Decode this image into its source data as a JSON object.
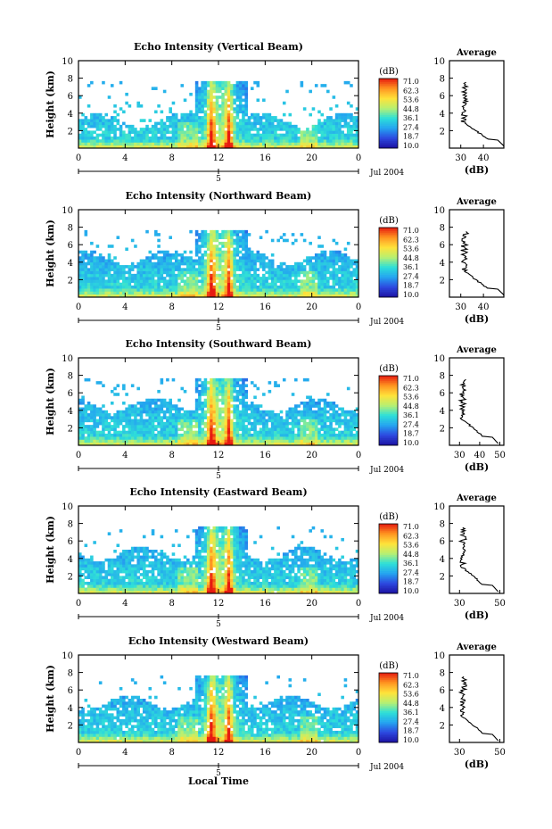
{
  "chart_data": [
    {
      "type": "heatmap",
      "title": "Echo Intensity (Vertical Beam)",
      "ylabel": "Height (km)",
      "xticks": [
        "0",
        "4",
        "8",
        "12",
        "16",
        "20",
        "0"
      ],
      "yticks": [
        "2",
        "4",
        "6",
        "8",
        "10"
      ],
      "xlim": [
        0,
        24
      ],
      "ylim": [
        0,
        10
      ],
      "colorbar": {
        "unit": "(dB)",
        "ticks": [
          "71.0",
          "62.3",
          "53.6",
          "44.8",
          "36.1",
          "27.4",
          "18.7",
          "10.0"
        ]
      },
      "date_label": "Jul 2004",
      "date_tick": "5",
      "profile": {
        "title": "Average",
        "xlabel": "(dB)",
        "xticks": [
          "30",
          "40"
        ],
        "yticks": [
          "2",
          "4",
          "6",
          "8",
          "10"
        ],
        "xlim": [
          25,
          49
        ],
        "ylim": [
          0,
          10
        ]
      }
    },
    {
      "type": "heatmap",
      "title": "Echo Intensity (Northward Beam)",
      "ylabel": "Height (km)",
      "xticks": [
        "0",
        "4",
        "8",
        "12",
        "16",
        "20",
        "0"
      ],
      "yticks": [
        "2",
        "4",
        "6",
        "8",
        "10"
      ],
      "xlim": [
        0,
        24
      ],
      "ylim": [
        0,
        10
      ],
      "colorbar": {
        "unit": "(dB)",
        "ticks": [
          "71.0",
          "62.3",
          "53.6",
          "44.8",
          "36.1",
          "27.4",
          "18.7",
          "10.0"
        ]
      },
      "date_label": "Jul 2004",
      "date_tick": "5",
      "profile": {
        "title": "Average",
        "xlabel": "(dB)",
        "xticks": [
          "30",
          "40"
        ],
        "yticks": [
          "2",
          "4",
          "6",
          "8",
          "10"
        ],
        "xlim": [
          25,
          49
        ],
        "ylim": [
          0,
          10
        ]
      }
    },
    {
      "type": "heatmap",
      "title": "Echo Intensity (Southward Beam)",
      "ylabel": "Height (km)",
      "xticks": [
        "0",
        "4",
        "8",
        "12",
        "16",
        "20",
        "0"
      ],
      "yticks": [
        "2",
        "4",
        "6",
        "8",
        "10"
      ],
      "xlim": [
        0,
        24
      ],
      "ylim": [
        0,
        10
      ],
      "colorbar": {
        "unit": "(dB)",
        "ticks": [
          "71.0",
          "62.3",
          "53.6",
          "44.8",
          "36.1",
          "27.4",
          "18.7",
          "10.0"
        ]
      },
      "date_label": "Jul 2004",
      "date_tick": "5",
      "profile": {
        "title": "Average",
        "xlabel": "(dB)",
        "xticks": [
          "30",
          "40",
          "50"
        ],
        "yticks": [
          "2",
          "4",
          "6",
          "8",
          "10"
        ],
        "xlim": [
          25,
          52
        ],
        "ylim": [
          0,
          10
        ]
      }
    },
    {
      "type": "heatmap",
      "title": "Echo Intensity (Eastward Beam)",
      "ylabel": "Height (km)",
      "xticks": [
        "0",
        "4",
        "8",
        "12",
        "16",
        "20",
        "0"
      ],
      "yticks": [
        "2",
        "4",
        "6",
        "8",
        "10"
      ],
      "xlim": [
        0,
        24
      ],
      "ylim": [
        0,
        10
      ],
      "colorbar": {
        "unit": "(dB)",
        "ticks": [
          "71.0",
          "62.3",
          "53.6",
          "44.8",
          "36.1",
          "27.4",
          "18.7",
          "10.0"
        ]
      },
      "date_label": "Jul 2004",
      "date_tick": "5",
      "profile": {
        "title": "Average",
        "xlabel": "(dB)",
        "xticks": [
          "30",
          "50"
        ],
        "yticks": [
          "2",
          "4",
          "6",
          "8",
          "10"
        ],
        "xlim": [
          25,
          52
        ],
        "ylim": [
          0,
          10
        ]
      }
    },
    {
      "type": "heatmap",
      "title": "Echo Intensity (Westward Beam)",
      "ylabel": "Height (km)",
      "xticks": [
        "0",
        "4",
        "8",
        "12",
        "16",
        "20",
        "0"
      ],
      "yticks": [
        "2",
        "4",
        "6",
        "8",
        "10"
      ],
      "xlim": [
        0,
        24
      ],
      "ylim": [
        0,
        10
      ],
      "colorbar": {
        "unit": "(dB)",
        "ticks": [
          "71.0",
          "62.3",
          "53.6",
          "44.8",
          "36.1",
          "27.4",
          "18.7",
          "10.0"
        ]
      },
      "date_label": "Jul 2004",
      "date_tick": "5",
      "profile": {
        "title": "Average",
        "xlabel": "(dB)",
        "xticks": [
          "30",
          "50"
        ],
        "yticks": [
          "2",
          "4",
          "6",
          "8",
          "10"
        ],
        "xlim": [
          25,
          52
        ],
        "ylim": [
          0,
          10
        ]
      }
    }
  ],
  "xlabel_bottom": "Local Time",
  "colors": {
    "axis": "#000000",
    "background": "#ffffff",
    "colormap": [
      "#1a0fa0",
      "#2d49e0",
      "#23a4f0",
      "#2ee0d8",
      "#b8f070",
      "#ffe23a",
      "#ff9420",
      "#e61a10"
    ]
  }
}
